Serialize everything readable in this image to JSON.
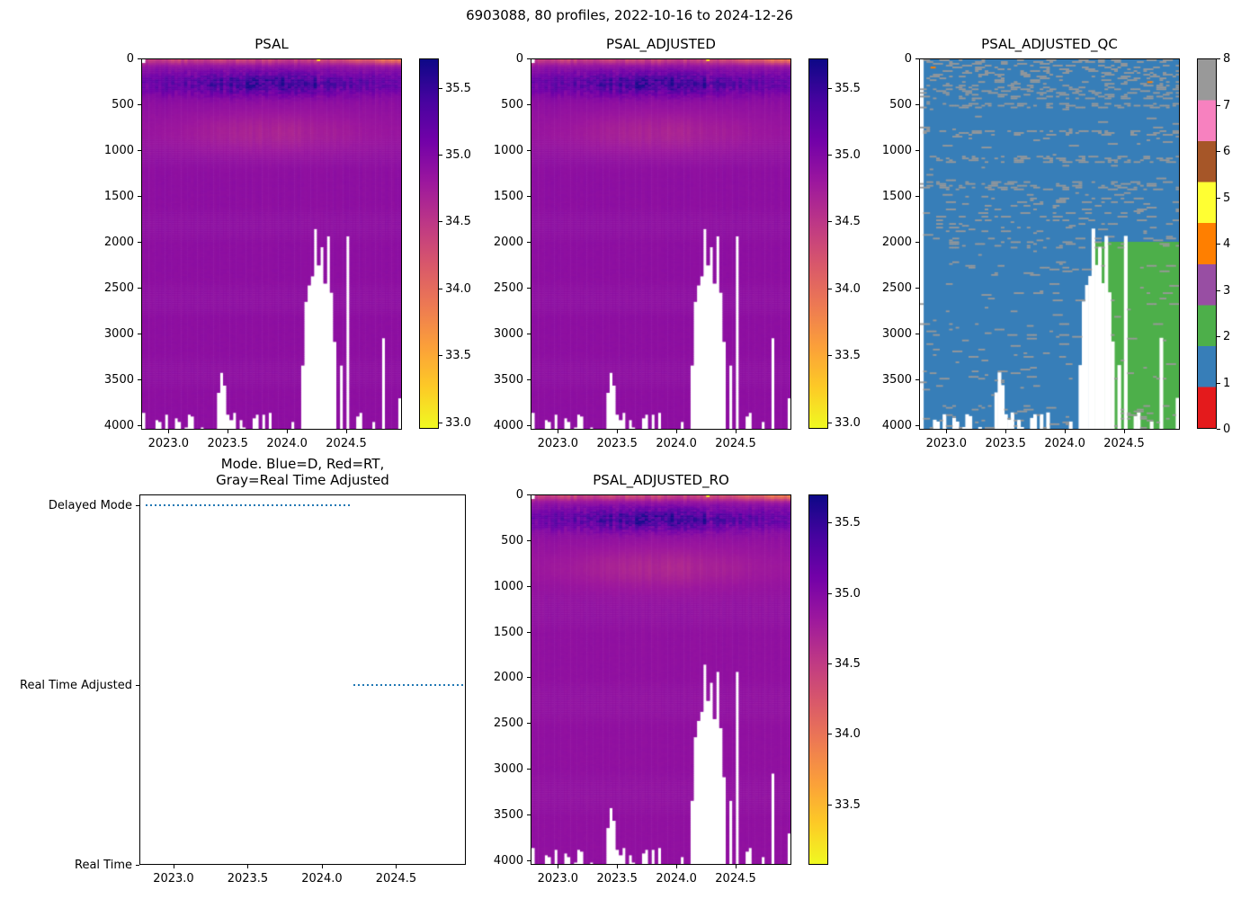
{
  "figure": {
    "title": "6903088, 80 profiles, 2022-10-16 to 2024-12-26"
  },
  "colors": {
    "background": "#ffffff",
    "axis_text": "#000000",
    "missing_data": "#ffffff",
    "mode_line": "#1f77b4",
    "plasma_r_top_to_bottom": [
      "#0d0887",
      "#46039f",
      "#7201a8",
      "#9c179e",
      "#bd3786",
      "#d8576b",
      "#ed7953",
      "#fb9f3a",
      "#fdca26",
      "#f0f921"
    ],
    "qc_palette": {
      "0": "#e41a1c",
      "1": "#377eb8",
      "2": "#4daf4a",
      "3": "#984ea3",
      "4": "#ff7f00",
      "5": "#ffff33",
      "6": "#a65628",
      "7": "#f781bf",
      "8": "#999999"
    }
  },
  "chart_data": [
    {
      "id": "psal",
      "type": "heatmap",
      "title": "PSAL",
      "x_min": 2022.77,
      "x_max": 2024.97,
      "x_ticks": [
        2023.0,
        2023.5,
        2024.0,
        2024.5
      ],
      "depth_min": 0,
      "depth_max": 4050,
      "y_ticks": [
        0,
        500,
        1000,
        1500,
        2000,
        2500,
        3000,
        3500,
        4000
      ],
      "n_profiles": 80,
      "colormap": "plasma_r",
      "colorbar": {
        "vmin": 32.95,
        "vmax": 35.72,
        "ticks": [
          35.5,
          35.0,
          34.5,
          34.0,
          33.5,
          33.0
        ]
      },
      "field": {
        "deep_salinity": 34.87,
        "surface_salinity_early": 34.4,
        "surface_salinity_late": 33.95,
        "subsurface_max_salinity": 35.7,
        "subsurface_max_depth": 265,
        "intermediate_min_salinity": 34.6,
        "intermediate_min_depth": 800,
        "surface_outlier": {
          "t": 2024.28,
          "salinity": 33.15
        },
        "first_profile_top_missing_to_depth": 45
      },
      "missing_gaps": [
        {
          "t": 2023.42,
          "from_depth": 3660
        },
        {
          "t": 2023.45,
          "from_depth": 3440
        },
        {
          "t": 2023.48,
          "from_depth": 3580
        },
        {
          "t": 2024.13,
          "from_depth": 3350
        },
        {
          "t": 2024.16,
          "from_depth": 2650
        },
        {
          "t": 2024.19,
          "from_depth": 2480
        },
        {
          "t": 2024.22,
          "from_depth": 2380
        },
        {
          "t": 2024.245,
          "from_depth": 1850
        },
        {
          "t": 2024.27,
          "from_depth": 2250
        },
        {
          "t": 2024.3,
          "from_depth": 2050
        },
        {
          "t": 2024.325,
          "from_depth": 2450
        },
        {
          "t": 2024.35,
          "from_depth": 1930
        },
        {
          "t": 2024.375,
          "from_depth": 2550
        },
        {
          "t": 2024.4,
          "from_depth": 3100
        },
        {
          "t": 2024.46,
          "from_depth": 3350
        },
        {
          "t": 2024.52,
          "from_depth": 1930
        },
        {
          "t": 2024.83,
          "from_depth": 3060
        },
        {
          "t": 2024.95,
          "from_depth": 3720
        }
      ]
    },
    {
      "id": "psal_adjusted",
      "type": "heatmap",
      "title": "PSAL_ADJUSTED",
      "x_min": 2022.77,
      "x_max": 2024.97,
      "x_ticks": [
        2023.0,
        2023.5,
        2024.0,
        2024.5
      ],
      "depth_min": 0,
      "depth_max": 4050,
      "y_ticks": [
        0,
        500,
        1000,
        1500,
        2000,
        2500,
        3000,
        3500,
        4000
      ],
      "colormap": "plasma_r",
      "colorbar": {
        "vmin": 32.95,
        "vmax": 35.72,
        "ticks": [
          35.5,
          35.0,
          34.5,
          34.0,
          33.5,
          33.0
        ]
      }
    },
    {
      "id": "psal_adjusted_qc",
      "type": "heatmap",
      "title": "PSAL_ADJUSTED_QC",
      "x_min": 2022.77,
      "x_max": 2024.97,
      "x_ticks": [
        2023.0,
        2023.5,
        2024.0,
        2024.5
      ],
      "depth_min": 0,
      "depth_max": 4050,
      "y_ticks": [
        0,
        500,
        1000,
        1500,
        2000,
        2500,
        3000,
        3500,
        4000
      ],
      "colorbar": {
        "min": 0,
        "max": 8,
        "ticks": [
          0,
          1,
          2,
          3,
          4,
          5,
          6,
          7,
          8
        ]
      },
      "qc_background_value": 1,
      "qc_speckle_value": 8,
      "qc_region_2": {
        "qc": 2,
        "t_start": 2024.25,
        "depth_from": 2000
      },
      "qc_orange_marks": [
        {
          "t": 2022.86,
          "depth": 80,
          "qc": 4
        },
        {
          "t": 2024.7,
          "depth": 240,
          "qc": 4
        }
      ],
      "speckle_bands_depths": [
        500,
        800,
        1100,
        1380,
        2000,
        3450
      ]
    },
    {
      "id": "mode",
      "type": "line",
      "title": "Mode. Blue=D, Red=RT,\nGray=Real Time Adjusted",
      "x_min": 2022.77,
      "x_max": 2024.97,
      "x_ticks": [
        2023.0,
        2023.5,
        2024.0,
        2024.5
      ],
      "y_min": 0,
      "y_max": 2.06,
      "y_levels": [
        {
          "value": 2,
          "label": "Delayed Mode"
        },
        {
          "value": 1,
          "label": "Real Time Adjusted"
        },
        {
          "value": 0,
          "label": "Real Time"
        }
      ],
      "segments": [
        {
          "label": "Delayed Mode",
          "level": 2,
          "t_start": 2022.815,
          "t_end": 2024.19
        },
        {
          "label": "Real Time Adjusted",
          "level": 1,
          "t_start": 2024.21,
          "t_end": 2024.96
        }
      ],
      "line_style": "dotted"
    },
    {
      "id": "psal_adjusted_ro",
      "type": "heatmap",
      "title": "PSAL_ADJUSTED_RO",
      "x_min": 2022.77,
      "x_max": 2024.97,
      "x_ticks": [
        2023.0,
        2023.5,
        2024.0,
        2024.5
      ],
      "depth_min": 0,
      "depth_max": 4050,
      "y_ticks": [
        0,
        500,
        1000,
        1500,
        2000,
        2500,
        3000,
        3500,
        4000
      ],
      "colormap": "plasma_r",
      "colorbar": {
        "vmin": 33.07,
        "vmax": 35.7,
        "ticks": [
          35.5,
          35.0,
          34.5,
          34.0,
          33.5
        ]
      }
    }
  ]
}
